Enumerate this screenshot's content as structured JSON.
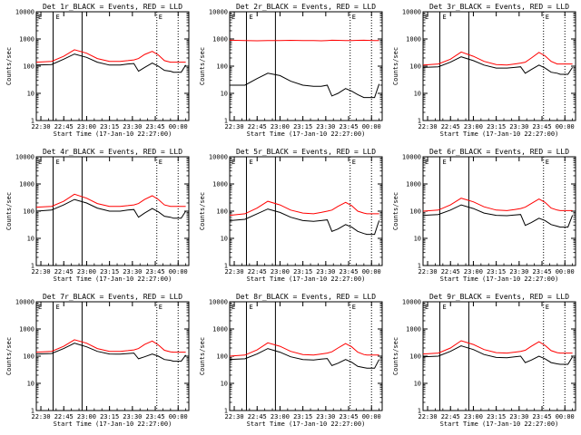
{
  "figure": {
    "xlabel": "Start Time (17-Jan-10 22:27:00)",
    "ylabel": "Counts/sec",
    "x_ticks": [
      "22:30",
      "22:45",
      "23:00",
      "23:15",
      "23:30",
      "23:45",
      "00:00"
    ],
    "y_ticks": [
      "1",
      "10",
      "100",
      "1000",
      "10000"
    ],
    "colors": {
      "events": "#000000",
      "lld": "#ff0000",
      "axis": "#000000"
    }
  },
  "chart_data": [
    {
      "type": "line",
      "title": "Det 1r_BLACK = Events, RED = LLD",
      "x_unit": "minutes after 22:27:00",
      "xlim": [
        0,
        100
      ],
      "ylim": [
        1,
        10000
      ],
      "yscale": "log",
      "solid_vlines": [
        11,
        30
      ],
      "dotted_vlines": [
        79,
        93
      ],
      "marker_label": "E",
      "x": [
        0,
        10,
        18,
        25,
        33,
        40,
        48,
        55,
        60,
        64,
        67,
        71,
        76,
        80,
        84,
        88,
        90,
        95,
        98
      ],
      "series": [
        {
          "name": "LLD",
          "color": "#ff0000",
          "values": [
            140,
            150,
            230,
            400,
            300,
            190,
            150,
            150,
            160,
            170,
            190,
            270,
            350,
            260,
            160,
            140,
            140,
            140,
            140
          ]
        },
        {
          "name": "Events",
          "color": "#000000",
          "values": [
            110,
            115,
            180,
            280,
            210,
            140,
            110,
            110,
            120,
            125,
            65,
            90,
            130,
            100,
            70,
            65,
            60,
            60,
            110
          ]
        }
      ]
    },
    {
      "type": "line",
      "title": "Det 2r_BLACK = Events, RED = LLD",
      "x_unit": "minutes after 22:27:00",
      "xlim": [
        0,
        100
      ],
      "ylim": [
        1,
        10000
      ],
      "yscale": "log",
      "solid_vlines": [
        11,
        30
      ],
      "dotted_vlines": [
        79,
        93
      ],
      "marker_label": "E",
      "x": [
        0,
        10,
        18,
        25,
        33,
        40,
        48,
        55,
        60,
        64,
        67,
        71,
        76,
        80,
        84,
        88,
        90,
        95,
        98
      ],
      "series": [
        {
          "name": "LLD",
          "color": "#ff0000",
          "values": [
            900,
            880,
            860,
            870,
            880,
            890,
            880,
            870,
            860,
            880,
            900,
            890,
            880,
            880,
            890,
            900,
            890,
            880,
            880
          ]
        },
        {
          "name": "Events",
          "color": "#000000",
          "values": [
            20,
            20,
            35,
            55,
            45,
            28,
            20,
            18,
            18,
            20,
            8,
            10,
            15,
            12,
            9,
            7,
            7,
            7,
            22
          ]
        }
      ]
    },
    {
      "type": "line",
      "title": "Det 3r_BLACK = Events, RED = LLD",
      "x_unit": "minutes after 22:27:00",
      "xlim": [
        0,
        100
      ],
      "ylim": [
        1,
        10000
      ],
      "yscale": "log",
      "solid_vlines": [
        11,
        30
      ],
      "dotted_vlines": [
        79,
        93
      ],
      "marker_label": "E",
      "x": [
        0,
        10,
        18,
        25,
        33,
        40,
        48,
        55,
        60,
        64,
        67,
        71,
        76,
        80,
        84,
        88,
        90,
        95,
        98
      ],
      "series": [
        {
          "name": "LLD",
          "color": "#ff0000",
          "values": [
            110,
            120,
            180,
            330,
            230,
            150,
            115,
            110,
            120,
            130,
            140,
            200,
            320,
            240,
            150,
            120,
            120,
            120,
            120
          ]
        },
        {
          "name": "Events",
          "color": "#000000",
          "values": [
            90,
            95,
            140,
            220,
            160,
            110,
            85,
            85,
            90,
            95,
            55,
            75,
            110,
            85,
            60,
            55,
            50,
            50,
            90
          ]
        }
      ]
    },
    {
      "type": "line",
      "title": "Det 4r_BLACK = Events, RED = LLD",
      "x_unit": "minutes after 22:27:00",
      "xlim": [
        0,
        100
      ],
      "ylim": [
        1,
        10000
      ],
      "yscale": "log",
      "solid_vlines": [
        11,
        30
      ],
      "dotted_vlines": [
        79,
        93
      ],
      "marker_label": "E",
      "x": [
        0,
        10,
        18,
        25,
        33,
        40,
        48,
        55,
        60,
        64,
        67,
        71,
        76,
        80,
        84,
        88,
        90,
        95,
        98
      ],
      "series": [
        {
          "name": "LLD",
          "color": "#ff0000",
          "values": [
            140,
            150,
            230,
            420,
            300,
            190,
            150,
            150,
            160,
            170,
            190,
            270,
            370,
            270,
            170,
            150,
            150,
            150,
            150
          ]
        },
        {
          "name": "Events",
          "color": "#000000",
          "values": [
            100,
            110,
            170,
            270,
            200,
            130,
            100,
            100,
            110,
            115,
            60,
            85,
            125,
            95,
            65,
            60,
            55,
            55,
            100
          ]
        }
      ]
    },
    {
      "type": "line",
      "title": "Det 5r_BLACK = Events, RED = LLD",
      "x_unit": "minutes after 22:27:00",
      "xlim": [
        0,
        100
      ],
      "ylim": [
        1,
        10000
      ],
      "yscale": "log",
      "solid_vlines": [
        11,
        30
      ],
      "dotted_vlines": [
        79,
        93
      ],
      "marker_label": "E",
      "x": [
        0,
        10,
        18,
        25,
        33,
        40,
        48,
        55,
        60,
        64,
        67,
        71,
        76,
        80,
        84,
        88,
        90,
        95,
        98
      ],
      "series": [
        {
          "name": "LLD",
          "color": "#ff0000",
          "values": [
            70,
            80,
            130,
            230,
            170,
            110,
            85,
            80,
            90,
            100,
            110,
            150,
            210,
            160,
            100,
            85,
            80,
            80,
            80
          ]
        },
        {
          "name": "Events",
          "color": "#000000",
          "values": [
            45,
            50,
            80,
            120,
            90,
            60,
            45,
            42,
            45,
            48,
            18,
            22,
            32,
            26,
            18,
            15,
            14,
            14,
            45
          ]
        }
      ]
    },
    {
      "type": "line",
      "title": "Det 6r_BLACK = Events, RED = LLD",
      "x_unit": "minutes after 22:27:00",
      "xlim": [
        0,
        100
      ],
      "ylim": [
        1,
        10000
      ],
      "yscale": "log",
      "solid_vlines": [
        11,
        30
      ],
      "dotted_vlines": [
        79,
        93
      ],
      "marker_label": "E",
      "x": [
        0,
        10,
        18,
        25,
        33,
        40,
        48,
        55,
        60,
        64,
        67,
        71,
        76,
        80,
        84,
        88,
        90,
        95,
        98
      ],
      "series": [
        {
          "name": "LLD",
          "color": "#ff0000",
          "values": [
            100,
            110,
            170,
            300,
            220,
            145,
            110,
            105,
            115,
            125,
            140,
            190,
            280,
            210,
            130,
            110,
            105,
            105,
            105
          ]
        },
        {
          "name": "Events",
          "color": "#000000",
          "values": [
            70,
            75,
            110,
            170,
            125,
            85,
            70,
            68,
            72,
            75,
            30,
            38,
            55,
            45,
            32,
            28,
            26,
            26,
            70
          ]
        }
      ]
    },
    {
      "type": "line",
      "title": "Det 7r_BLACK = Events, RED = LLD",
      "x_unit": "minutes after 22:27:00",
      "xlim": [
        0,
        100
      ],
      "ylim": [
        1,
        10000
      ],
      "yscale": "log",
      "solid_vlines": [
        11,
        30
      ],
      "dotted_vlines": [
        79,
        93
      ],
      "marker_label": "E",
      "x": [
        0,
        10,
        18,
        25,
        33,
        40,
        48,
        55,
        60,
        64,
        67,
        71,
        76,
        80,
        84,
        88,
        90,
        95,
        98
      ],
      "series": [
        {
          "name": "LLD",
          "color": "#ff0000",
          "values": [
            140,
            150,
            230,
            400,
            300,
            190,
            150,
            150,
            160,
            170,
            190,
            270,
            360,
            260,
            165,
            145,
            140,
            140,
            140
          ]
        },
        {
          "name": "Events",
          "color": "#000000",
          "values": [
            120,
            125,
            190,
            300,
            220,
            150,
            120,
            118,
            125,
            130,
            80,
            95,
            120,
            100,
            75,
            70,
            65,
            65,
            110
          ]
        }
      ]
    },
    {
      "type": "line",
      "title": "Det 8r_BLACK = Events, RED = LLD",
      "x_unit": "minutes after 22:27:00",
      "xlim": [
        0,
        100
      ],
      "ylim": [
        1,
        10000
      ],
      "yscale": "log",
      "solid_vlines": [
        11,
        30
      ],
      "dotted_vlines": [
        79,
        93
      ],
      "marker_label": "E",
      "x": [
        0,
        10,
        18,
        25,
        33,
        40,
        48,
        55,
        60,
        64,
        67,
        71,
        76,
        80,
        84,
        88,
        90,
        95,
        98
      ],
      "series": [
        {
          "name": "LLD",
          "color": "#ff0000",
          "values": [
            100,
            110,
            170,
            310,
            230,
            150,
            115,
            110,
            120,
            130,
            145,
            200,
            290,
            220,
            140,
            115,
            110,
            110,
            110
          ]
        },
        {
          "name": "Events",
          "color": "#000000",
          "values": [
            75,
            80,
            120,
            190,
            140,
            95,
            75,
            72,
            78,
            82,
            45,
            55,
            75,
            60,
            42,
            38,
            36,
            36,
            75
          ]
        }
      ]
    },
    {
      "type": "line",
      "title": "Det 9r_BLACK = Events, RED = LLD",
      "x_unit": "minutes after 22:27:00",
      "xlim": [
        0,
        100
      ],
      "ylim": [
        1,
        10000
      ],
      "yscale": "log",
      "solid_vlines": [
        11,
        30
      ],
      "dotted_vlines": [
        79,
        93
      ],
      "marker_label": "E",
      "x": [
        0,
        10,
        18,
        25,
        33,
        40,
        48,
        55,
        60,
        64,
        67,
        71,
        76,
        80,
        84,
        88,
        90,
        95,
        98
      ],
      "series": [
        {
          "name": "LLD",
          "color": "#ff0000",
          "values": [
            120,
            130,
            200,
            370,
            270,
            175,
            135,
            130,
            140,
            150,
            165,
            230,
            340,
            250,
            160,
            135,
            130,
            130,
            130
          ]
        },
        {
          "name": "Events",
          "color": "#000000",
          "values": [
            95,
            100,
            150,
            240,
            175,
            115,
            90,
            88,
            95,
            100,
            58,
            72,
            100,
            80,
            58,
            52,
            50,
            50,
            95
          ]
        }
      ]
    }
  ]
}
